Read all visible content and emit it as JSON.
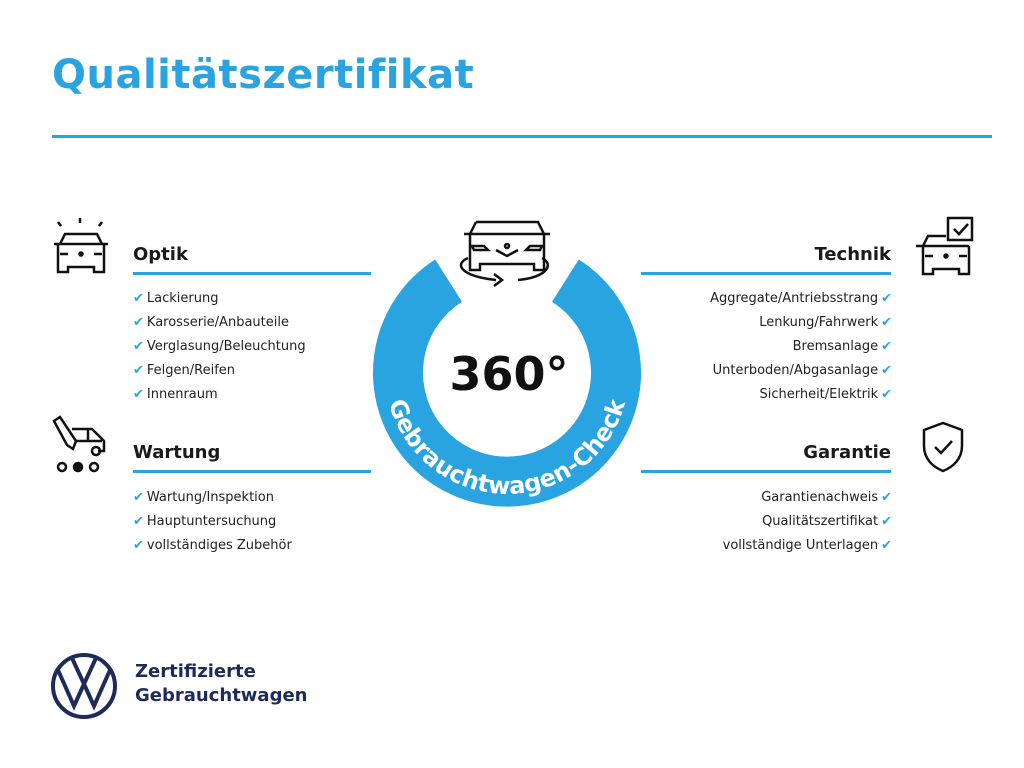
{
  "title": "Qualitätszertifikat",
  "center": {
    "big": "360°",
    "ring_text": "Gebrauchtwagen-Check",
    "color": "#2aa4e0"
  },
  "sections": {
    "optik": {
      "title": "Optik",
      "icon": "car-lights-icon",
      "items": [
        "Lackierung",
        "Karosserie/Anbauteile",
        "Verglasung/Beleuchtung",
        "Felgen/Reifen",
        "Innenraum"
      ]
    },
    "wartung": {
      "title": "Wartung",
      "icon": "car-service-icon",
      "items": [
        "Wartung/Inspektion",
        "Hauptuntersuchung",
        "vollständiges Zubehör"
      ]
    },
    "technik": {
      "title": "Technik",
      "icon": "car-checklist-icon",
      "items": [
        "Aggregate/Antriebsstrang",
        "Lenkung/Fahrwerk",
        "Bremsanlage",
        "Unterboden/Abgasanlage",
        "Sicherheit/Elektrik"
      ]
    },
    "garantie": {
      "title": "Garantie",
      "icon": "shield-check-icon",
      "items": [
        "Garantienachweis",
        "Qualitätszertifikat",
        "vollständige Unterlagen"
      ]
    }
  },
  "check_mark": "✔",
  "brand": {
    "line1": "Zertifizierte",
    "line2": "Gebrauchtwagen",
    "logo": "vw-logo"
  }
}
